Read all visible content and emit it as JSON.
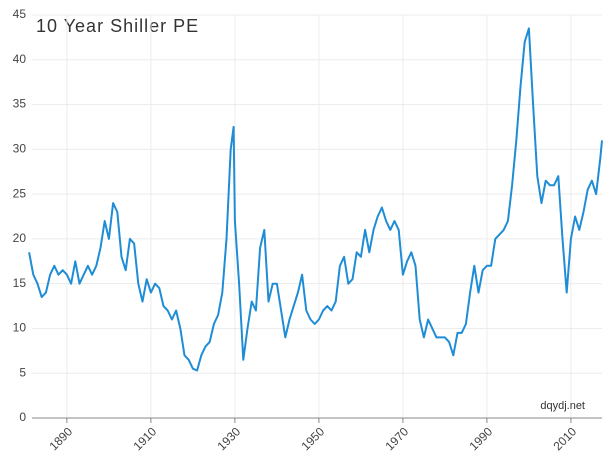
{
  "chart_data": {
    "type": "line",
    "title": "10 Year Shiller PE",
    "annotation": "dqydj.net",
    "x": [
      1881,
      1882,
      1883,
      1884,
      1885,
      1886,
      1887,
      1888,
      1889,
      1890,
      1891,
      1892,
      1893,
      1894,
      1895,
      1896,
      1897,
      1898,
      1899,
      1900,
      1901,
      1902,
      1903,
      1904,
      1905,
      1906,
      1907,
      1908,
      1909,
      1910,
      1911,
      1912,
      1913,
      1914,
      1915,
      1916,
      1917,
      1918,
      1919,
      1920,
      1921,
      1922,
      1923,
      1924,
      1925,
      1926,
      1927,
      1928,
      1929,
      1929.7,
      1930,
      1931,
      1932,
      1933,
      1934,
      1935,
      1936,
      1937,
      1938,
      1939,
      1940,
      1941,
      1942,
      1943,
      1944,
      1945,
      1946,
      1947,
      1948,
      1949,
      1950,
      1951,
      1952,
      1953,
      1954,
      1955,
      1956,
      1957,
      1958,
      1959,
      1960,
      1961,
      1962,
      1963,
      1964,
      1965,
      1966,
      1967,
      1968,
      1969,
      1970,
      1971,
      1972,
      1973,
      1974,
      1975,
      1976,
      1977,
      1978,
      1979,
      1980,
      1981,
      1982,
      1983,
      1984,
      1985,
      1986,
      1987,
      1988,
      1989,
      1990,
      1991,
      1992,
      1993,
      1994,
      1995,
      1996,
      1997,
      1998,
      1999,
      2000,
      2001,
      2002,
      2003,
      2004,
      2005,
      2006,
      2007,
      2008,
      2009,
      2010,
      2011,
      2012,
      2013,
      2014,
      2015,
      2016,
      2017,
      2017.4
    ],
    "series": [
      {
        "name": "Shiller PE",
        "color": "#1f8dd6",
        "values": [
          18.5,
          16,
          15,
          13.5,
          14,
          16,
          17,
          16,
          16.5,
          16,
          15,
          17.5,
          15,
          16,
          17,
          16,
          17,
          19,
          22,
          20,
          24,
          23,
          18,
          16.5,
          20,
          19.5,
          15,
          13,
          15.5,
          14,
          15,
          14.5,
          12.5,
          12,
          11,
          12,
          10,
          7,
          6.5,
          5.5,
          5.3,
          7,
          8,
          8.5,
          10.5,
          11.5,
          14,
          20,
          30,
          32.5,
          22,
          15,
          6.5,
          10,
          13,
          12,
          19,
          21,
          13,
          15,
          15,
          12,
          9,
          11,
          12.5,
          14,
          16,
          12,
          11,
          10.5,
          11,
          12,
          12.5,
          12,
          13,
          17,
          18,
          15,
          15.5,
          18.5,
          18,
          21,
          18.5,
          21,
          22.5,
          23.5,
          22,
          21,
          22,
          21,
          16,
          17.5,
          18.5,
          17,
          11,
          9,
          11,
          10,
          9,
          9,
          9,
          8.5,
          7,
          9.5,
          9.5,
          10.5,
          14,
          17,
          14,
          16.5,
          17,
          17,
          20,
          20.5,
          21,
          22,
          26,
          31,
          37,
          42,
          43.5,
          35,
          27,
          24,
          26.5,
          26,
          26,
          27,
          20,
          14,
          20,
          22.5,
          21,
          23,
          25.5,
          26.5,
          25,
          29,
          31
        ]
      }
    ],
    "xlim": [
      1881.7,
      2017.4
    ],
    "xticks": [
      1890,
      1910,
      1930,
      1950,
      1970,
      1990,
      2010
    ],
    "ylim": [
      0,
      45
    ],
    "yticks": [
      0,
      5,
      10,
      15,
      20,
      25,
      30,
      35,
      40,
      45
    ],
    "grid": true
  }
}
